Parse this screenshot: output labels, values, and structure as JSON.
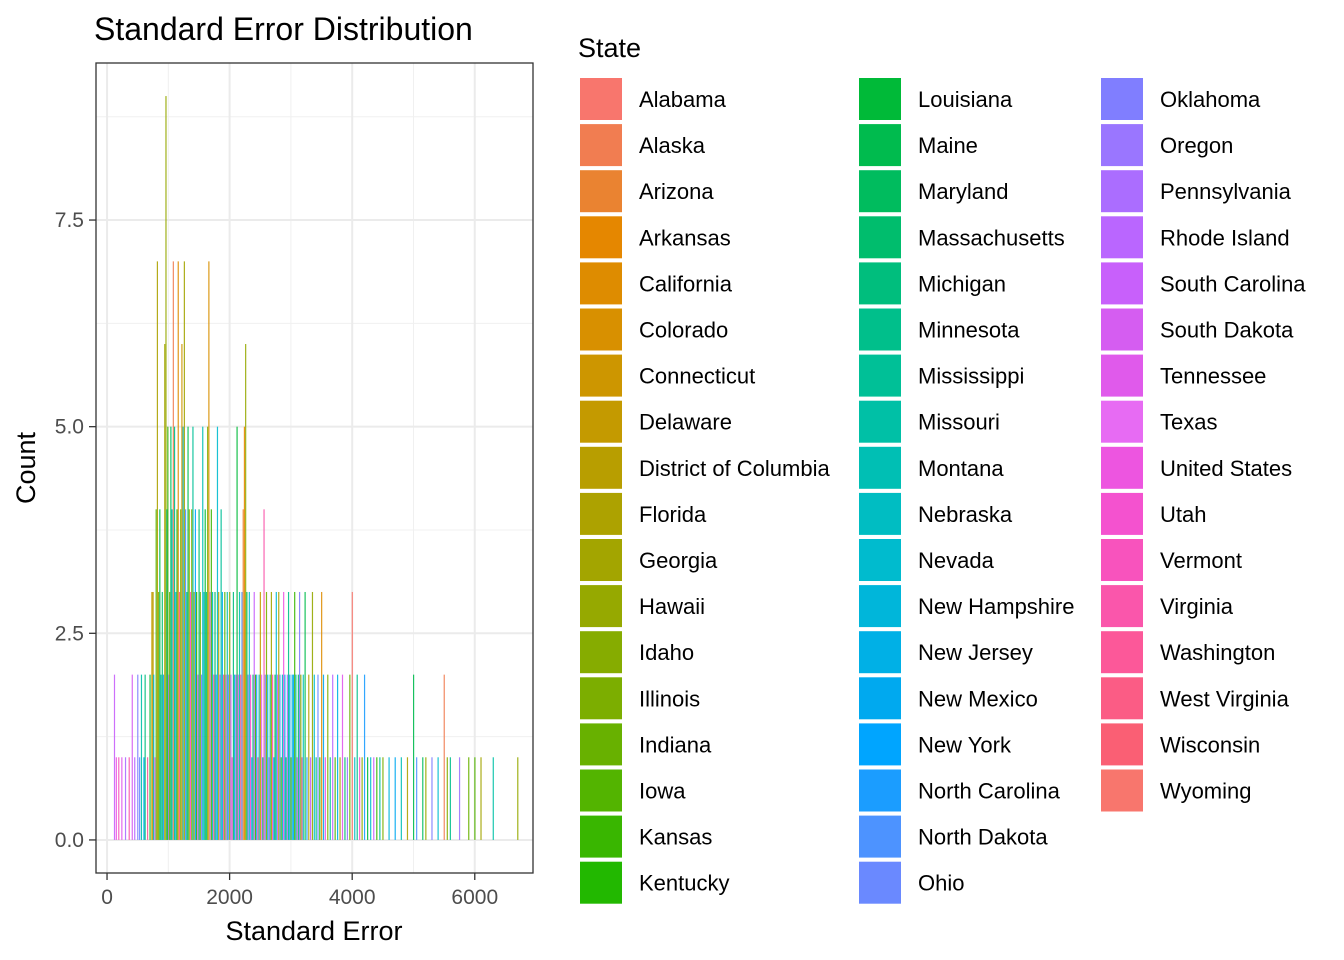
{
  "chart_data": {
    "type": "bar",
    "title": "Standard Error Distribution",
    "xlabel": "Standard Error",
    "ylabel": "Count",
    "xlim": [
      -180,
      6950
    ],
    "ylim": [
      -0.4,
      9.4
    ],
    "x_ticks": [
      0,
      2000,
      4000,
      6000
    ],
    "x_tick_labels": [
      "0",
      "2000",
      "4000",
      "6000"
    ],
    "y_ticks": [
      0,
      2.5,
      5,
      7.5
    ],
    "y_tick_labels": [
      "0.0",
      "2.5",
      "5.0",
      "7.5"
    ],
    "grid": true,
    "stacked": false,
    "legend": {
      "title": "State",
      "position": "right",
      "columns": 3,
      "entries": [
        {
          "name": "Alabama",
          "color": "#F8766D"
        },
        {
          "name": "Alaska",
          "color": "#F17D51"
        },
        {
          "name": "Arizona",
          "color": "#EA8331"
        },
        {
          "name": "Arkansas",
          "color": "#E58700"
        },
        {
          "name": "California",
          "color": "#DE8C00"
        },
        {
          "name": "Colorado",
          "color": "#D89000"
        },
        {
          "name": "Connecticut",
          "color": "#CD9600"
        },
        {
          "name": "Delaware",
          "color": "#C49A00"
        },
        {
          "name": "District of Columbia",
          "color": "#B89E00"
        },
        {
          "name": "Florida",
          "color": "#ADA200"
        },
        {
          "name": "Georgia",
          "color": "#A3A500"
        },
        {
          "name": "Hawaii",
          "color": "#96A900"
        },
        {
          "name": "Idaho",
          "color": "#86AC00"
        },
        {
          "name": "Illinois",
          "color": "#7CAE00"
        },
        {
          "name": "Indiana",
          "color": "#68B100"
        },
        {
          "name": "Iowa",
          "color": "#53B400"
        },
        {
          "name": "Kansas",
          "color": "#39B600"
        },
        {
          "name": "Kentucky",
          "color": "#22B800"
        },
        {
          "name": "Louisiana",
          "color": "#00BA38"
        },
        {
          "name": "Maine",
          "color": "#00BB4E"
        },
        {
          "name": "Maryland",
          "color": "#00BC5E"
        },
        {
          "name": "Massachusetts",
          "color": "#00BD6D"
        },
        {
          "name": "Michigan",
          "color": "#00BE7D"
        },
        {
          "name": "Minnesota",
          "color": "#00BF8B"
        },
        {
          "name": "Mississippi",
          "color": "#00C097"
        },
        {
          "name": "Missouri",
          "color": "#00C0A6"
        },
        {
          "name": "Montana",
          "color": "#00BFB4"
        },
        {
          "name": "Nebraska",
          "color": "#00BDC2"
        },
        {
          "name": "Nevada",
          "color": "#00BBCE"
        },
        {
          "name": "New Hampshire",
          "color": "#00B6DA"
        },
        {
          "name": "New Jersey",
          "color": "#00B0E6"
        },
        {
          "name": "New Mexico",
          "color": "#00A9EF"
        },
        {
          "name": "New York",
          "color": "#00A5FF"
        },
        {
          "name": "North Carolina",
          "color": "#1B9DFF"
        },
        {
          "name": "North Dakota",
          "color": "#4D93FF"
        },
        {
          "name": "Ohio",
          "color": "#6A89FF"
        },
        {
          "name": "Oklahoma",
          "color": "#807EFF"
        },
        {
          "name": "Oregon",
          "color": "#9A76FF"
        },
        {
          "name": "Pennsylvania",
          "color": "#AB6DFF"
        },
        {
          "name": "Rhode Island",
          "color": "#BA66FF"
        },
        {
          "name": "South Carolina",
          "color": "#C860FB"
        },
        {
          "name": "South Dakota",
          "color": "#D55DF1"
        },
        {
          "name": "Tennessee",
          "color": "#E05AEB"
        },
        {
          "name": "Texas",
          "color": "#E76BF3"
        },
        {
          "name": "United States",
          "color": "#ED55E0"
        },
        {
          "name": "Utah",
          "color": "#F452CF"
        },
        {
          "name": "Vermont",
          "color": "#F853BD"
        },
        {
          "name": "Virginia",
          "color": "#FA56AB"
        },
        {
          "name": "Washington",
          "color": "#FC5899"
        },
        {
          "name": "West Virginia",
          "color": "#FB5C85"
        },
        {
          "name": "Wisconsin",
          "color": "#FA5F74"
        },
        {
          "name": "Wyoming",
          "color": "#F8766D"
        }
      ]
    },
    "bar_width": 16,
    "bars": [
      {
        "x": 120,
        "y": 2,
        "s": 40
      },
      {
        "x": 150,
        "y": 1,
        "s": 44
      },
      {
        "x": 190,
        "y": 1,
        "s": 46
      },
      {
        "x": 240,
        "y": 1,
        "s": 42
      },
      {
        "x": 300,
        "y": 1,
        "s": 38
      },
      {
        "x": 360,
        "y": 1,
        "s": 47
      },
      {
        "x": 410,
        "y": 2,
        "s": 41
      },
      {
        "x": 450,
        "y": 1,
        "s": 39
      },
      {
        "x": 500,
        "y": 2,
        "s": 36
      },
      {
        "x": 530,
        "y": 1,
        "s": 35
      },
      {
        "x": 560,
        "y": 2,
        "s": 25
      },
      {
        "x": 600,
        "y": 1,
        "s": 31
      },
      {
        "x": 620,
        "y": 2,
        "s": 22
      },
      {
        "x": 660,
        "y": 1,
        "s": 48
      },
      {
        "x": 700,
        "y": 2,
        "s": 18
      },
      {
        "x": 730,
        "y": 3,
        "s": 7
      },
      {
        "x": 750,
        "y": 3,
        "s": 8
      },
      {
        "x": 760,
        "y": 2,
        "s": 29
      },
      {
        "x": 780,
        "y": 1,
        "s": 43
      },
      {
        "x": 800,
        "y": 4,
        "s": 15
      },
      {
        "x": 820,
        "y": 7,
        "s": 9
      },
      {
        "x": 840,
        "y": 3,
        "s": 12
      },
      {
        "x": 860,
        "y": 4,
        "s": 19
      },
      {
        "x": 880,
        "y": 2,
        "s": 26
      },
      {
        "x": 900,
        "y": 3,
        "s": 21
      },
      {
        "x": 920,
        "y": 2,
        "s": 33
      },
      {
        "x": 940,
        "y": 6,
        "s": 10
      },
      {
        "x": 960,
        "y": 9,
        "s": 11
      },
      {
        "x": 975,
        "y": 4,
        "s": 24
      },
      {
        "x": 990,
        "y": 5,
        "s": 16
      },
      {
        "x": 1005,
        "y": 2,
        "s": 37
      },
      {
        "x": 1020,
        "y": 3,
        "s": 14
      },
      {
        "x": 1040,
        "y": 5,
        "s": 20
      },
      {
        "x": 1060,
        "y": 4,
        "s": 27
      },
      {
        "x": 1080,
        "y": 7,
        "s": 1
      },
      {
        "x": 1100,
        "y": 5,
        "s": 23
      },
      {
        "x": 1120,
        "y": 3,
        "s": 30
      },
      {
        "x": 1140,
        "y": 4,
        "s": 17
      },
      {
        "x": 1160,
        "y": 7,
        "s": 4
      },
      {
        "x": 1180,
        "y": 3,
        "s": 49
      },
      {
        "x": 1200,
        "y": 4,
        "s": 13
      },
      {
        "x": 1220,
        "y": 6,
        "s": 6
      },
      {
        "x": 1240,
        "y": 5,
        "s": 28
      },
      {
        "x": 1260,
        "y": 7,
        "s": 10
      },
      {
        "x": 1280,
        "y": 4,
        "s": 34
      },
      {
        "x": 1300,
        "y": 3,
        "s": 22
      },
      {
        "x": 1320,
        "y": 5,
        "s": 19
      },
      {
        "x": 1340,
        "y": 4,
        "s": 11
      },
      {
        "x": 1360,
        "y": 3,
        "s": 45
      },
      {
        "x": 1380,
        "y": 4,
        "s": 12
      },
      {
        "x": 1400,
        "y": 5,
        "s": 24
      },
      {
        "x": 1420,
        "y": 3,
        "s": 8
      },
      {
        "x": 1440,
        "y": 4,
        "s": 32
      },
      {
        "x": 1460,
        "y": 3,
        "s": 17
      },
      {
        "x": 1480,
        "y": 2,
        "s": 41
      },
      {
        "x": 1500,
        "y": 4,
        "s": 21
      },
      {
        "x": 1520,
        "y": 3,
        "s": 14
      },
      {
        "x": 1540,
        "y": 2,
        "s": 36
      },
      {
        "x": 1560,
        "y": 5,
        "s": 26
      },
      {
        "x": 1580,
        "y": 3,
        "s": 29
      },
      {
        "x": 1600,
        "y": 4,
        "s": 18
      },
      {
        "x": 1620,
        "y": 3,
        "s": 23
      },
      {
        "x": 1640,
        "y": 5,
        "s": 13
      },
      {
        "x": 1660,
        "y": 7,
        "s": 5
      },
      {
        "x": 1680,
        "y": 3,
        "s": 43
      },
      {
        "x": 1700,
        "y": 4,
        "s": 16
      },
      {
        "x": 1720,
        "y": 3,
        "s": 27
      },
      {
        "x": 1740,
        "y": 2,
        "s": 47
      },
      {
        "x": 1760,
        "y": 3,
        "s": 20
      },
      {
        "x": 1780,
        "y": 2,
        "s": 33
      },
      {
        "x": 1800,
        "y": 5,
        "s": 28
      },
      {
        "x": 1820,
        "y": 3,
        "s": 9
      },
      {
        "x": 1840,
        "y": 2,
        "s": 39
      },
      {
        "x": 1860,
        "y": 4,
        "s": 24
      },
      {
        "x": 1880,
        "y": 3,
        "s": 31
      },
      {
        "x": 1900,
        "y": 2,
        "s": 48
      },
      {
        "x": 1920,
        "y": 3,
        "s": 15
      },
      {
        "x": 1940,
        "y": 2,
        "s": 44
      },
      {
        "x": 1960,
        "y": 3,
        "s": 25
      },
      {
        "x": 1980,
        "y": 2,
        "s": 35
      },
      {
        "x": 2000,
        "y": 3,
        "s": 12
      },
      {
        "x": 2020,
        "y": 2,
        "s": 40
      },
      {
        "x": 2040,
        "y": 1,
        "s": 46
      },
      {
        "x": 2060,
        "y": 3,
        "s": 22
      },
      {
        "x": 2080,
        "y": 2,
        "s": 29
      },
      {
        "x": 2100,
        "y": 2,
        "s": 38
      },
      {
        "x": 2120,
        "y": 5,
        "s": 18
      },
      {
        "x": 2140,
        "y": 2,
        "s": 42
      },
      {
        "x": 2160,
        "y": 3,
        "s": 26
      },
      {
        "x": 2180,
        "y": 2,
        "s": 49
      },
      {
        "x": 2200,
        "y": 3,
        "s": 34
      },
      {
        "x": 2220,
        "y": 4,
        "s": 2
      },
      {
        "x": 2240,
        "y": 5,
        "s": 3
      },
      {
        "x": 2260,
        "y": 6,
        "s": 11
      },
      {
        "x": 2280,
        "y": 3,
        "s": 19
      },
      {
        "x": 2300,
        "y": 2,
        "s": 37
      },
      {
        "x": 2320,
        "y": 3,
        "s": 28
      },
      {
        "x": 2340,
        "y": 2,
        "s": 45
      },
      {
        "x": 2360,
        "y": 1,
        "s": 30
      },
      {
        "x": 2380,
        "y": 2,
        "s": 22
      },
      {
        "x": 2400,
        "y": 3,
        "s": 40
      },
      {
        "x": 2420,
        "y": 2,
        "s": 16
      },
      {
        "x": 2440,
        "y": 2,
        "s": 33
      },
      {
        "x": 2460,
        "y": 1,
        "s": 48
      },
      {
        "x": 2480,
        "y": 2,
        "s": 26
      },
      {
        "x": 2500,
        "y": 3,
        "s": 7
      },
      {
        "x": 2520,
        "y": 2,
        "s": 43
      },
      {
        "x": 2540,
        "y": 1,
        "s": 21
      },
      {
        "x": 2560,
        "y": 4,
        "s": 47
      },
      {
        "x": 2580,
        "y": 2,
        "s": 35
      },
      {
        "x": 2600,
        "y": 3,
        "s": 13
      },
      {
        "x": 2620,
        "y": 2,
        "s": 29
      },
      {
        "x": 2640,
        "y": 1,
        "s": 39
      },
      {
        "x": 2660,
        "y": 2,
        "s": 24
      },
      {
        "x": 2680,
        "y": 3,
        "s": 10
      },
      {
        "x": 2700,
        "y": 2,
        "s": 46
      },
      {
        "x": 2720,
        "y": 1,
        "s": 32
      },
      {
        "x": 2740,
        "y": 2,
        "s": 18
      },
      {
        "x": 2760,
        "y": 3,
        "s": 28
      },
      {
        "x": 2780,
        "y": 2,
        "s": 41
      },
      {
        "x": 2800,
        "y": 3,
        "s": 9
      },
      {
        "x": 2820,
        "y": 2,
        "s": 34
      },
      {
        "x": 2840,
        "y": 1,
        "s": 15
      },
      {
        "x": 2860,
        "y": 2,
        "s": 27
      },
      {
        "x": 2880,
        "y": 3,
        "s": 44
      },
      {
        "x": 2900,
        "y": 2,
        "s": 30
      },
      {
        "x": 2920,
        "y": 1,
        "s": 20
      },
      {
        "x": 2940,
        "y": 2,
        "s": 38
      },
      {
        "x": 2960,
        "y": 3,
        "s": 23
      },
      {
        "x": 2980,
        "y": 2,
        "s": 31
      },
      {
        "x": 3000,
        "y": 1,
        "s": 14
      },
      {
        "x": 3020,
        "y": 2,
        "s": 29
      },
      {
        "x": 3040,
        "y": 2,
        "s": 32
      },
      {
        "x": 3060,
        "y": 3,
        "s": 16
      },
      {
        "x": 3080,
        "y": 2,
        "s": 25
      },
      {
        "x": 3100,
        "y": 1,
        "s": 42
      },
      {
        "x": 3120,
        "y": 2,
        "s": 21
      },
      {
        "x": 3140,
        "y": 3,
        "s": 36
      },
      {
        "x": 3160,
        "y": 2,
        "s": 12
      },
      {
        "x": 3180,
        "y": 1,
        "s": 47
      },
      {
        "x": 3200,
        "y": 2,
        "s": 26
      },
      {
        "x": 3230,
        "y": 3,
        "s": 19
      },
      {
        "x": 3260,
        "y": 1,
        "s": 33
      },
      {
        "x": 3290,
        "y": 2,
        "s": 8
      },
      {
        "x": 3320,
        "y": 1,
        "s": 40
      },
      {
        "x": 3350,
        "y": 3,
        "s": 11
      },
      {
        "x": 3380,
        "y": 2,
        "s": 28
      },
      {
        "x": 3410,
        "y": 1,
        "s": 22
      },
      {
        "x": 3440,
        "y": 2,
        "s": 35
      },
      {
        "x": 3470,
        "y": 1,
        "s": 17
      },
      {
        "x": 3500,
        "y": 3,
        "s": 4
      },
      {
        "x": 3530,
        "y": 2,
        "s": 31
      },
      {
        "x": 3560,
        "y": 1,
        "s": 44
      },
      {
        "x": 3600,
        "y": 2,
        "s": 13
      },
      {
        "x": 3640,
        "y": 1,
        "s": 24
      },
      {
        "x": 3680,
        "y": 2,
        "s": 39
      },
      {
        "x": 3720,
        "y": 1,
        "s": 15
      },
      {
        "x": 3760,
        "y": 2,
        "s": 30
      },
      {
        "x": 3800,
        "y": 1,
        "s": 9
      },
      {
        "x": 3840,
        "y": 2,
        "s": 42
      },
      {
        "x": 3880,
        "y": 1,
        "s": 21
      },
      {
        "x": 3920,
        "y": 1,
        "s": 37
      },
      {
        "x": 3960,
        "y": 2,
        "s": 14
      },
      {
        "x": 4000,
        "y": 3,
        "s": 0
      },
      {
        "x": 4040,
        "y": 1,
        "s": 27
      },
      {
        "x": 4080,
        "y": 2,
        "s": 23
      },
      {
        "x": 4120,
        "y": 1,
        "s": 45
      },
      {
        "x": 4160,
        "y": 1,
        "s": 12
      },
      {
        "x": 4200,
        "y": 2,
        "s": 33
      },
      {
        "x": 4250,
        "y": 1,
        "s": 18
      },
      {
        "x": 4300,
        "y": 1,
        "s": 28
      },
      {
        "x": 4350,
        "y": 1,
        "s": 40
      },
      {
        "x": 4400,
        "y": 1,
        "s": 16
      },
      {
        "x": 4450,
        "y": 1,
        "s": 24
      },
      {
        "x": 4500,
        "y": 1,
        "s": 13
      },
      {
        "x": 4600,
        "y": 1,
        "s": 29
      },
      {
        "x": 4700,
        "y": 1,
        "s": 31
      },
      {
        "x": 4800,
        "y": 1,
        "s": 26
      },
      {
        "x": 4900,
        "y": 1,
        "s": 9
      },
      {
        "x": 5000,
        "y": 2,
        "s": 19
      },
      {
        "x": 5050,
        "y": 1,
        "s": 34
      },
      {
        "x": 5150,
        "y": 1,
        "s": 20
      },
      {
        "x": 5200,
        "y": 1,
        "s": 11
      },
      {
        "x": 5300,
        "y": 1,
        "s": 36
      },
      {
        "x": 5400,
        "y": 1,
        "s": 28
      },
      {
        "x": 5500,
        "y": 2,
        "s": 1
      },
      {
        "x": 5550,
        "y": 1,
        "s": 12
      },
      {
        "x": 5600,
        "y": 1,
        "s": 23
      },
      {
        "x": 5750,
        "y": 1,
        "s": 37
      },
      {
        "x": 5900,
        "y": 1,
        "s": 14
      },
      {
        "x": 6000,
        "y": 1,
        "s": 15
      },
      {
        "x": 6100,
        "y": 1,
        "s": 10
      },
      {
        "x": 6300,
        "y": 1,
        "s": 25
      },
      {
        "x": 6700,
        "y": 1,
        "s": 11
      }
    ]
  }
}
